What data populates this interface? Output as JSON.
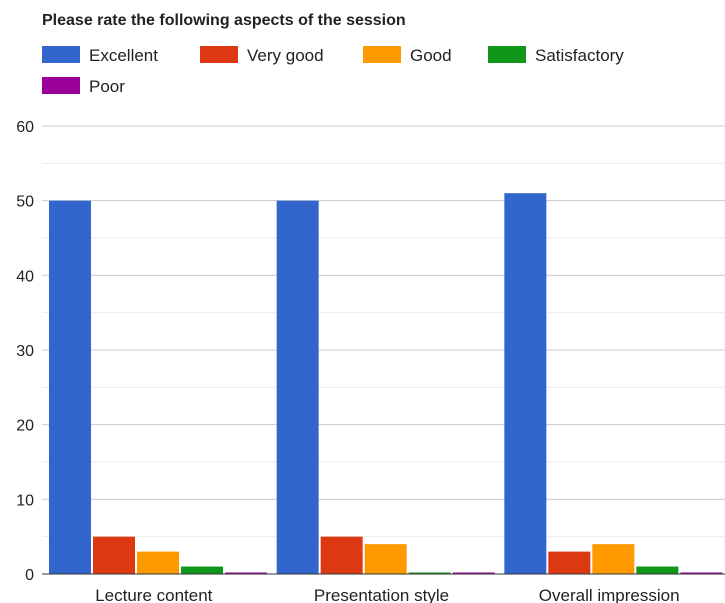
{
  "chart_data": {
    "type": "bar",
    "title": "Please rate the following aspects of the session",
    "categories": [
      "Lecture content",
      "Presentation style",
      "Overall impression"
    ],
    "series": [
      {
        "name": "Excellent",
        "color": "#3366cc",
        "values": [
          50,
          50,
          51
        ]
      },
      {
        "name": "Very good",
        "color": "#dc3912",
        "values": [
          5,
          5,
          3
        ]
      },
      {
        "name": "Good",
        "color": "#ff9900",
        "values": [
          3,
          4,
          4
        ]
      },
      {
        "name": "Satisfactory",
        "color": "#109618",
        "values": [
          1,
          0,
          1
        ]
      },
      {
        "name": "Poor",
        "color": "#990099",
        "values": [
          0,
          0,
          0
        ]
      }
    ],
    "ylim": [
      0,
      60
    ],
    "yticks": [
      0,
      10,
      20,
      30,
      40,
      50,
      60
    ],
    "xlabel": "",
    "ylabel": "",
    "legend_position": "top",
    "grid": true
  }
}
